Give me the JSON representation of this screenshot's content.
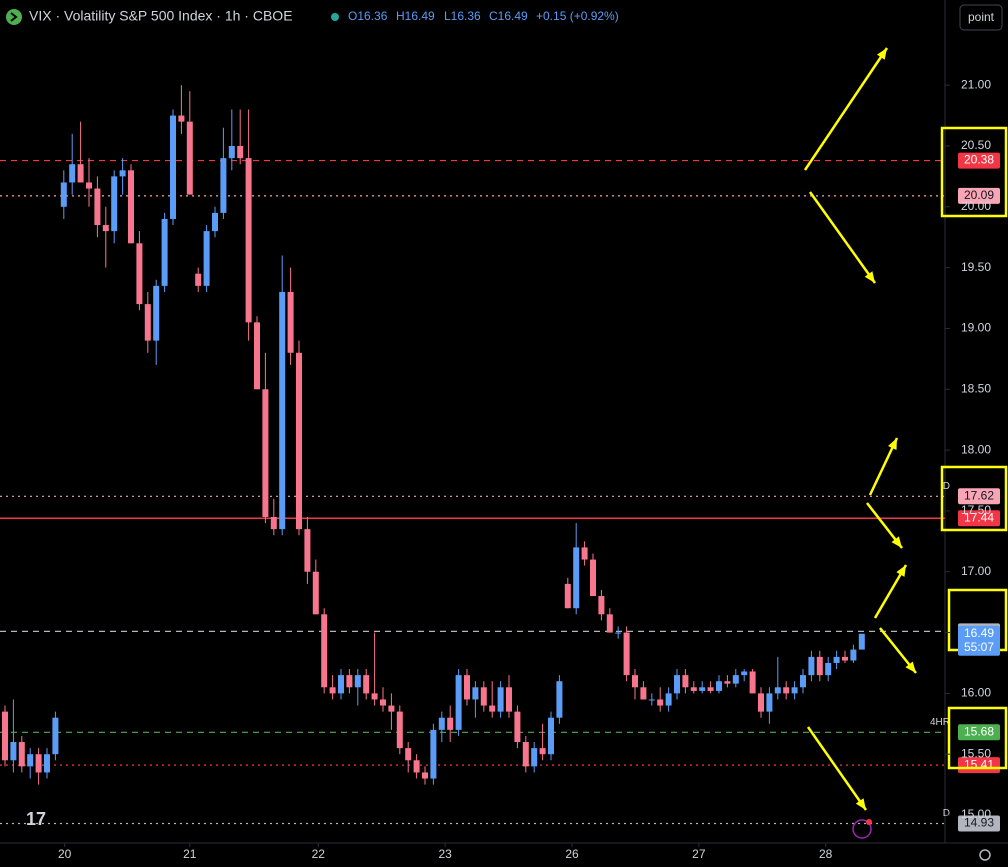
{
  "chart_data": {
    "type": "candlestick",
    "title": "VIX · Volatility S&P 500 Index · 1h · CBOE",
    "legend_values": [
      "O16.36",
      "H16.49",
      "L16.36",
      "C16.49"
    ],
    "change": "+0.15 (+0.92%)",
    "button": "point",
    "countdown": "55:07",
    "up_color": "#5b9cf6",
    "down_color": "#f7768e",
    "ylim": [
      14.77,
      21.7
    ],
    "yticks": [
      {
        "value": 21,
        "label": "21.00"
      },
      {
        "value": 20.5,
        "label": "20.50"
      },
      {
        "value": 20,
        "label": "20.00"
      },
      {
        "value": 19.5,
        "label": "19.50"
      },
      {
        "value": 19,
        "label": "19.00"
      },
      {
        "value": 18.5,
        "label": "18.50"
      },
      {
        "value": 18,
        "label": "18.00"
      },
      {
        "value": 17.5,
        "label": "17.50"
      },
      {
        "value": 17,
        "label": "17.00"
      },
      {
        "value": 16.5,
        "label": "16.50"
      },
      {
        "value": 16,
        "label": "16.00"
      },
      {
        "value": 15.5,
        "label": "15.50"
      },
      {
        "value": 15,
        "label": "15.00"
      }
    ],
    "xticks": [
      {
        "value": 7.1,
        "label": "20"
      },
      {
        "value": 22,
        "label": "21"
      },
      {
        "value": 37.3,
        "label": "22"
      },
      {
        "value": 52.4,
        "label": "23"
      },
      {
        "value": 67.5,
        "label": "26"
      },
      {
        "value": 82.6,
        "label": "27"
      },
      {
        "value": 97.7,
        "label": "28"
      }
    ],
    "levels": [
      {
        "value": 20.38,
        "color": "#f23645",
        "style": "dashed",
        "text_color": "#ffffff"
      },
      {
        "value": 20.09,
        "color": "#f8a5b5",
        "style": "dotted",
        "text_color": "#131722"
      },
      {
        "value": 17.62,
        "color": "#f8a5b5",
        "style": "dotted",
        "text_color": "#131722",
        "tag": "D"
      },
      {
        "value": 17.44,
        "color": "#f23645",
        "style": "solid",
        "text_color": "#ffffff"
      },
      {
        "value": 16.51,
        "color": "#b2b5be",
        "style": "dashed",
        "text_color": "#131722"
      },
      {
        "value": 15.68,
        "color": "#4caf50",
        "style": "dashed",
        "text_color": "#ffffff",
        "tag": "4HR"
      },
      {
        "value": 15.41,
        "color": "#f23645",
        "style": "dotted",
        "text_color": "#ffffff"
      },
      {
        "value": 14.93,
        "color": "#b2b5be",
        "style": "dotted",
        "text_color": "#131722",
        "tag": "D"
      }
    ],
    "ohlc": [
      [
        15.85,
        15.9,
        15.4,
        15.45
      ],
      [
        15.45,
        15.95,
        15.35,
        15.6
      ],
      [
        15.6,
        15.65,
        15.35,
        15.4
      ],
      [
        15.4,
        15.55,
        15.3,
        15.5
      ],
      [
        15.5,
        15.55,
        15.25,
        15.35
      ],
      [
        15.35,
        15.55,
        15.3,
        15.5
      ],
      [
        15.5,
        15.85,
        15.45,
        15.8
      ],
      [
        20.0,
        20.3,
        19.9,
        20.2
      ],
      [
        20.2,
        20.6,
        20.1,
        20.35
      ],
      [
        20.35,
        20.7,
        20.2,
        20.2
      ],
      [
        20.2,
        20.4,
        20.0,
        20.15
      ],
      [
        20.15,
        20.25,
        19.75,
        19.85
      ],
      [
        19.85,
        20.0,
        19.5,
        19.8
      ],
      [
        19.8,
        20.3,
        19.7,
        20.25
      ],
      [
        20.25,
        20.4,
        20.1,
        20.3
      ],
      [
        20.3,
        20.35,
        19.7,
        19.7
      ],
      [
        19.7,
        19.8,
        19.15,
        19.2
      ],
      [
        19.2,
        19.3,
        18.8,
        18.9
      ],
      [
        18.9,
        19.4,
        18.7,
        19.35
      ],
      [
        19.35,
        19.95,
        19.3,
        19.9
      ],
      [
        19.9,
        20.8,
        19.85,
        20.75
      ],
      [
        20.75,
        21.0,
        20.6,
        20.7
      ],
      [
        20.7,
        20.95,
        20.1,
        20.1
      ],
      [
        19.45,
        19.5,
        19.3,
        19.35
      ],
      [
        19.35,
        19.85,
        19.3,
        19.8
      ],
      [
        19.8,
        20.0,
        19.75,
        19.95
      ],
      [
        19.95,
        20.65,
        19.9,
        20.4
      ],
      [
        20.4,
        20.8,
        20.3,
        20.5
      ],
      [
        20.5,
        20.8,
        20.35,
        20.4
      ],
      [
        20.4,
        20.8,
        18.9,
        19.05
      ],
      [
        19.05,
        19.1,
        18.5,
        18.5
      ],
      [
        18.5,
        18.8,
        17.4,
        17.45
      ],
      [
        17.45,
        17.6,
        17.3,
        17.35
      ],
      [
        17.35,
        19.6,
        17.3,
        19.3
      ],
      [
        19.3,
        19.5,
        18.7,
        18.8
      ],
      [
        18.8,
        18.9,
        17.3,
        17.35
      ],
      [
        17.35,
        17.45,
        16.9,
        17.0
      ],
      [
        17.0,
        17.1,
        16.65,
        16.65
      ],
      [
        16.65,
        16.7,
        16.0,
        16.05
      ],
      [
        16.05,
        16.15,
        15.95,
        16.0
      ],
      [
        16.0,
        16.2,
        15.95,
        16.15
      ],
      [
        16.15,
        16.2,
        16.0,
        16.05
      ],
      [
        16.05,
        16.2,
        15.9,
        16.15
      ],
      [
        16.15,
        16.2,
        15.95,
        16.0
      ],
      [
        16.0,
        16.5,
        15.9,
        15.95
      ],
      [
        15.95,
        16.05,
        15.85,
        15.9
      ],
      [
        15.9,
        16.0,
        15.7,
        15.85
      ],
      [
        15.85,
        15.9,
        15.5,
        15.55
      ],
      [
        15.55,
        15.6,
        15.35,
        15.45
      ],
      [
        15.45,
        15.5,
        15.3,
        15.35
      ],
      [
        15.35,
        15.4,
        15.25,
        15.3
      ],
      [
        15.3,
        15.75,
        15.25,
        15.7
      ],
      [
        15.7,
        15.85,
        15.6,
        15.8
      ],
      [
        15.8,
        15.9,
        15.6,
        15.7
      ],
      [
        15.7,
        16.2,
        15.65,
        16.15
      ],
      [
        16.15,
        16.2,
        15.9,
        15.95
      ],
      [
        15.95,
        16.1,
        15.8,
        16.05
      ],
      [
        16.05,
        16.1,
        15.85,
        15.9
      ],
      [
        15.9,
        16.1,
        15.8,
        15.85
      ],
      [
        15.85,
        16.1,
        15.8,
        16.05
      ],
      [
        16.05,
        16.15,
        15.8,
        15.85
      ],
      [
        15.85,
        15.9,
        15.55,
        15.6
      ],
      [
        15.6,
        15.65,
        15.35,
        15.4
      ],
      [
        15.4,
        15.6,
        15.35,
        15.55
      ],
      [
        15.55,
        15.75,
        15.45,
        15.5
      ],
      [
        15.5,
        15.85,
        15.45,
        15.8
      ],
      [
        15.8,
        16.15,
        15.75,
        16.1
      ],
      [
        16.9,
        16.95,
        16.7,
        16.7
      ],
      [
        16.7,
        17.4,
        16.65,
        17.2
      ],
      [
        17.2,
        17.25,
        17.05,
        17.1
      ],
      [
        17.1,
        17.15,
        16.8,
        16.8
      ],
      [
        16.8,
        16.85,
        16.6,
        16.65
      ],
      [
        16.65,
        16.7,
        16.5,
        16.5
      ],
      [
        16.5,
        16.55,
        16.45,
        16.5
      ],
      [
        16.5,
        16.55,
        16.1,
        16.15
      ],
      [
        16.15,
        16.2,
        15.95,
        16.05
      ],
      [
        16.05,
        16.1,
        15.95,
        15.95
      ],
      [
        15.95,
        16.0,
        15.9,
        15.95
      ],
      [
        15.95,
        16.05,
        15.85,
        15.9
      ],
      [
        15.9,
        16.05,
        15.85,
        16.0
      ],
      [
        16.0,
        16.2,
        15.95,
        16.15
      ],
      [
        16.15,
        16.2,
        16.0,
        16.05
      ],
      [
        16.05,
        16.1,
        16.0,
        16.02
      ],
      [
        16.02,
        16.1,
        16.0,
        16.05
      ],
      [
        16.05,
        16.1,
        16.0,
        16.02
      ],
      [
        16.02,
        16.15,
        16.0,
        16.1
      ],
      [
        16.1,
        16.15,
        16.05,
        16.08
      ],
      [
        16.08,
        16.2,
        16.05,
        16.15
      ],
      [
        16.15,
        16.2,
        16.1,
        16.18
      ],
      [
        16.18,
        16.2,
        16.0,
        16.0
      ],
      [
        16.0,
        16.05,
        15.8,
        15.85
      ],
      [
        15.85,
        16.05,
        15.75,
        16.0
      ],
      [
        16.0,
        16.3,
        15.95,
        16.05
      ],
      [
        16.05,
        16.1,
        15.95,
        16.0
      ],
      [
        16.0,
        16.1,
        15.95,
        16.05
      ],
      [
        16.05,
        16.2,
        16.0,
        16.15
      ],
      [
        16.15,
        16.35,
        16.1,
        16.3
      ],
      [
        16.3,
        16.35,
        16.1,
        16.15
      ],
      [
        16.15,
        16.3,
        16.1,
        16.25
      ],
      [
        16.25,
        16.35,
        16.2,
        16.3
      ],
      [
        16.3,
        16.35,
        16.25,
        16.27
      ],
      [
        16.27,
        16.4,
        16.25,
        16.36
      ],
      [
        16.36,
        16.49,
        16.36,
        16.49
      ]
    ]
  }
}
